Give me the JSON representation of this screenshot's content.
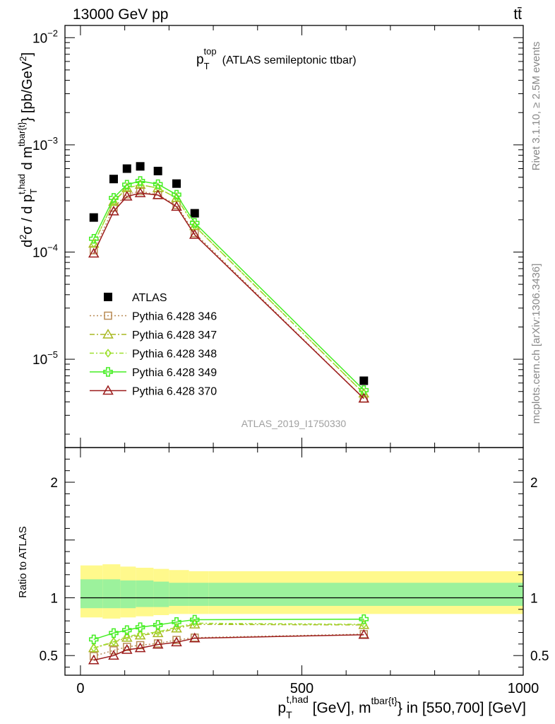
{
  "header": {
    "left": "13000 GeV pp",
    "right": "tt̄"
  },
  "side_labels": {
    "rivet": "Rivet 3.1.10, ≥ 2.5M events",
    "mcplots": "mcplots.cern.ch [arXiv:1306.3436]"
  },
  "watermark": "ATLAS_2019_I1750330",
  "chart_data": [
    {
      "panel": "main",
      "type": "line",
      "title": {
        "main": "p",
        "sup": "top",
        "sub": "T",
        "rest": "(ATLAS semileptonic ttbar)"
      },
      "ylabel": "d²σ / d p_T^{t,had} d m^{tbar{t}} [pb/GeV²]",
      "yscale": "log",
      "ylim": [
        1.5e-06,
        0.013
      ],
      "xlim": [
        -35,
        1000
      ],
      "y_ticks": [
        {
          "v": 0.01,
          "mant": "10",
          "exp": "−2"
        },
        {
          "v": 0.001,
          "mant": "10",
          "exp": "−3"
        },
        {
          "v": 0.0001,
          "mant": "10",
          "exp": "−4"
        },
        {
          "v": 1e-05,
          "mant": "10",
          "exp": "−5"
        }
      ],
      "legend_placement": "center-left",
      "x": [
        30,
        75,
        105,
        135,
        175,
        217,
        258,
        640
      ],
      "series": [
        {
          "name": "ATLAS",
          "marker": "square",
          "color": "#000000",
          "values": [
            0.00021,
            0.00048,
            0.0006,
            0.00063,
            0.00057,
            0.000435,
            0.00023,
            6.3e-06
          ]
        },
        {
          "name": "Pythia 6.428 346",
          "marker": "open-square",
          "color": "#b98b55",
          "dash": "2,3",
          "values": [
            0.000104,
            0.00026,
            0.000345,
            0.00037,
            0.00034,
            0.000275,
            0.00015,
            4.3e-06
          ]
        },
        {
          "name": "Pythia 6.428 347",
          "marker": "open-triangle",
          "color": "#a8b820",
          "dash": "7,3,2,3",
          "values": [
            0.00012,
            0.000295,
            0.000395,
            0.000425,
            0.000395,
            0.00032,
            0.000175,
            4.8e-06
          ]
        },
        {
          "name": "Pythia 6.428 348",
          "marker": "open-diamond",
          "color": "#9ee02e",
          "dash": "6,3,2,3",
          "values": [
            0.00012,
            0.000295,
            0.000395,
            0.000425,
            0.000395,
            0.00032,
            0.000175,
            4.8e-06
          ]
        },
        {
          "name": "Pythia 6.428 349",
          "marker": "open-cross",
          "color": "#44ee22",
          "dash": "",
          "values": [
            0.000133,
            0.00032,
            0.000425,
            0.00046,
            0.00043,
            0.000343,
            0.000187,
            5.15e-06
          ]
        },
        {
          "name": "Pythia 6.428 370",
          "marker": "open-triangle",
          "color": "#9b1b1b",
          "dash": "",
          "values": [
            9.7e-05,
            0.00024,
            0.00033,
            0.000355,
            0.00034,
            0.000265,
            0.000145,
            4.3e-06
          ]
        }
      ]
    },
    {
      "panel": "ratio",
      "type": "line",
      "ylabel": "Ratio to ATLAS",
      "xlabel": "p_T^{t,had} [GeV], m^{tbar{t}} in [550,700] [GeV]",
      "xlim": [
        -35,
        1000
      ],
      "ylim": [
        0.33,
        2.3
      ],
      "x_ticks": [
        0,
        500,
        1000
      ],
      "y_ticks": [
        0.5,
        1,
        2
      ],
      "band_edges": [
        0,
        50,
        90,
        125,
        165,
        200,
        245,
        290,
        1000
      ],
      "band_outer": [
        [
          0.83,
          1.28
        ],
        [
          0.82,
          1.29
        ],
        [
          0.83,
          1.27
        ],
        [
          0.84,
          1.26
        ],
        [
          0.85,
          1.25
        ],
        [
          0.86,
          1.24
        ],
        [
          0.86,
          1.23
        ],
        [
          0.86,
          1.23
        ]
      ],
      "band_inner": [
        [
          0.91,
          1.16
        ],
        [
          0.91,
          1.16
        ],
        [
          0.91,
          1.15
        ],
        [
          0.92,
          1.15
        ],
        [
          0.92,
          1.14
        ],
        [
          0.93,
          1.13
        ],
        [
          0.93,
          1.13
        ],
        [
          0.93,
          1.13
        ]
      ],
      "x": [
        30,
        75,
        105,
        135,
        175,
        217,
        258,
        640
      ],
      "series": [
        {
          "name": "Pythia 6.428 346",
          "values": [
            0.495,
            0.545,
            0.575,
            0.59,
            0.605,
            0.635,
            0.655,
            0.685
          ]
        },
        {
          "name": "Pythia 6.428 347",
          "values": [
            0.565,
            0.615,
            0.655,
            0.675,
            0.695,
            0.735,
            0.77,
            0.765
          ]
        },
        {
          "name": "Pythia 6.428 348",
          "values": [
            0.565,
            0.62,
            0.665,
            0.685,
            0.705,
            0.745,
            0.78,
            0.77
          ]
        },
        {
          "name": "Pythia 6.428 349",
          "values": [
            0.64,
            0.695,
            0.72,
            0.745,
            0.765,
            0.79,
            0.81,
            0.815
          ]
        },
        {
          "name": "Pythia 6.428 370",
          "values": [
            0.46,
            0.5,
            0.55,
            0.565,
            0.595,
            0.615,
            0.65,
            0.68
          ]
        }
      ]
    }
  ]
}
